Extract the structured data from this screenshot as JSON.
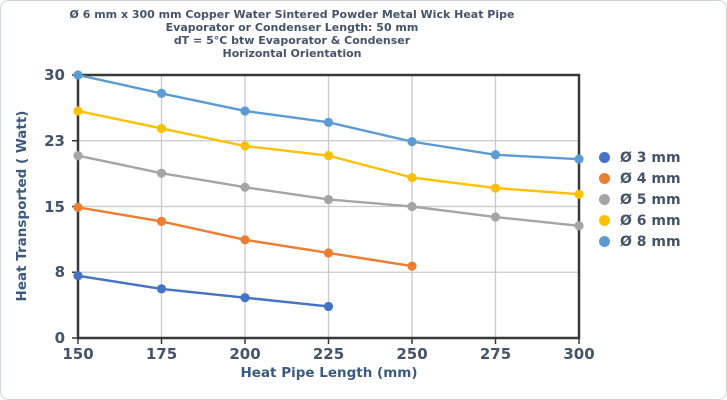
{
  "title_lines": [
    "Ø 6 mm x 300 mm Copper Water Sintered Powder Metal Wick Heat Pipe",
    "Evaporator or Condenser Length: 50 mm",
    "dT = 5°C btw Evaporator & Condenser",
    "Horizontal Orientation"
  ],
  "axes": {
    "y_label": "Heat Transported ( Watt)",
    "x_label": "Heat Pipe Length (mm)"
  },
  "legend": [
    {
      "label": "Ø 3 mm",
      "color": "#4472c4"
    },
    {
      "label": "Ø 4 mm",
      "color": "#ed7d31"
    },
    {
      "label": "Ø 5 mm",
      "color": "#a5a5a5"
    },
    {
      "label": "Ø 6 mm",
      "color": "#ffc000"
    },
    {
      "label": "Ø 8 mm",
      "color": "#5b9bd5"
    }
  ],
  "chart_data": {
    "type": "line",
    "x": [
      150,
      175,
      200,
      225,
      250,
      275,
      300
    ],
    "xlim": [
      150,
      300
    ],
    "ylim": [
      0,
      30
    ],
    "x_ticks": [
      {
        "label": "150",
        "value": 150
      },
      {
        "label": "175",
        "value": 175
      },
      {
        "label": "200",
        "value": 200
      },
      {
        "label": "225",
        "value": 225
      },
      {
        "label": "250",
        "value": 250
      },
      {
        "label": "275",
        "value": 275
      },
      {
        "label": "300",
        "value": 300
      }
    ],
    "y_ticks": [
      {
        "label": "0",
        "value": 0
      },
      {
        "label": "8",
        "value": 7.5
      },
      {
        "label": "15",
        "value": 15
      },
      {
        "label": "23",
        "value": 22.5
      },
      {
        "label": "30",
        "value": 30
      }
    ],
    "grid": true,
    "legend_position": "right",
    "title": "Ø 6 mm x 300 mm Copper Water Sintered Powder Metal Wick Heat Pipe — Evaporator or Condenser Length: 50 mm — dT = 5°C btw Evaporator & Condenser — Horizontal Orientation",
    "xlabel": "Heat Pipe Length (mm)",
    "ylabel": "Heat Transported ( Watt)",
    "series": [
      {
        "name": "Ø 3 mm",
        "color": "#4472c4",
        "values": [
          7.1,
          5.6,
          4.6,
          3.6,
          null,
          null,
          null
        ]
      },
      {
        "name": "Ø 4 mm",
        "color": "#ed7d31",
        "values": [
          14.9,
          13.3,
          11.2,
          9.7,
          8.2,
          null,
          null
        ]
      },
      {
        "name": "Ø 5 mm",
        "color": "#a5a5a5",
        "values": [
          20.8,
          18.8,
          17.2,
          15.8,
          15.0,
          13.8,
          12.8
        ]
      },
      {
        "name": "Ø 6 mm",
        "color": "#ffc000",
        "values": [
          25.9,
          23.9,
          21.9,
          20.8,
          18.3,
          17.1,
          16.4
        ]
      },
      {
        "name": "Ø 8 mm",
        "color": "#5b9bd5",
        "values": [
          30.0,
          27.9,
          25.9,
          24.6,
          22.4,
          20.9,
          20.4
        ]
      }
    ]
  }
}
